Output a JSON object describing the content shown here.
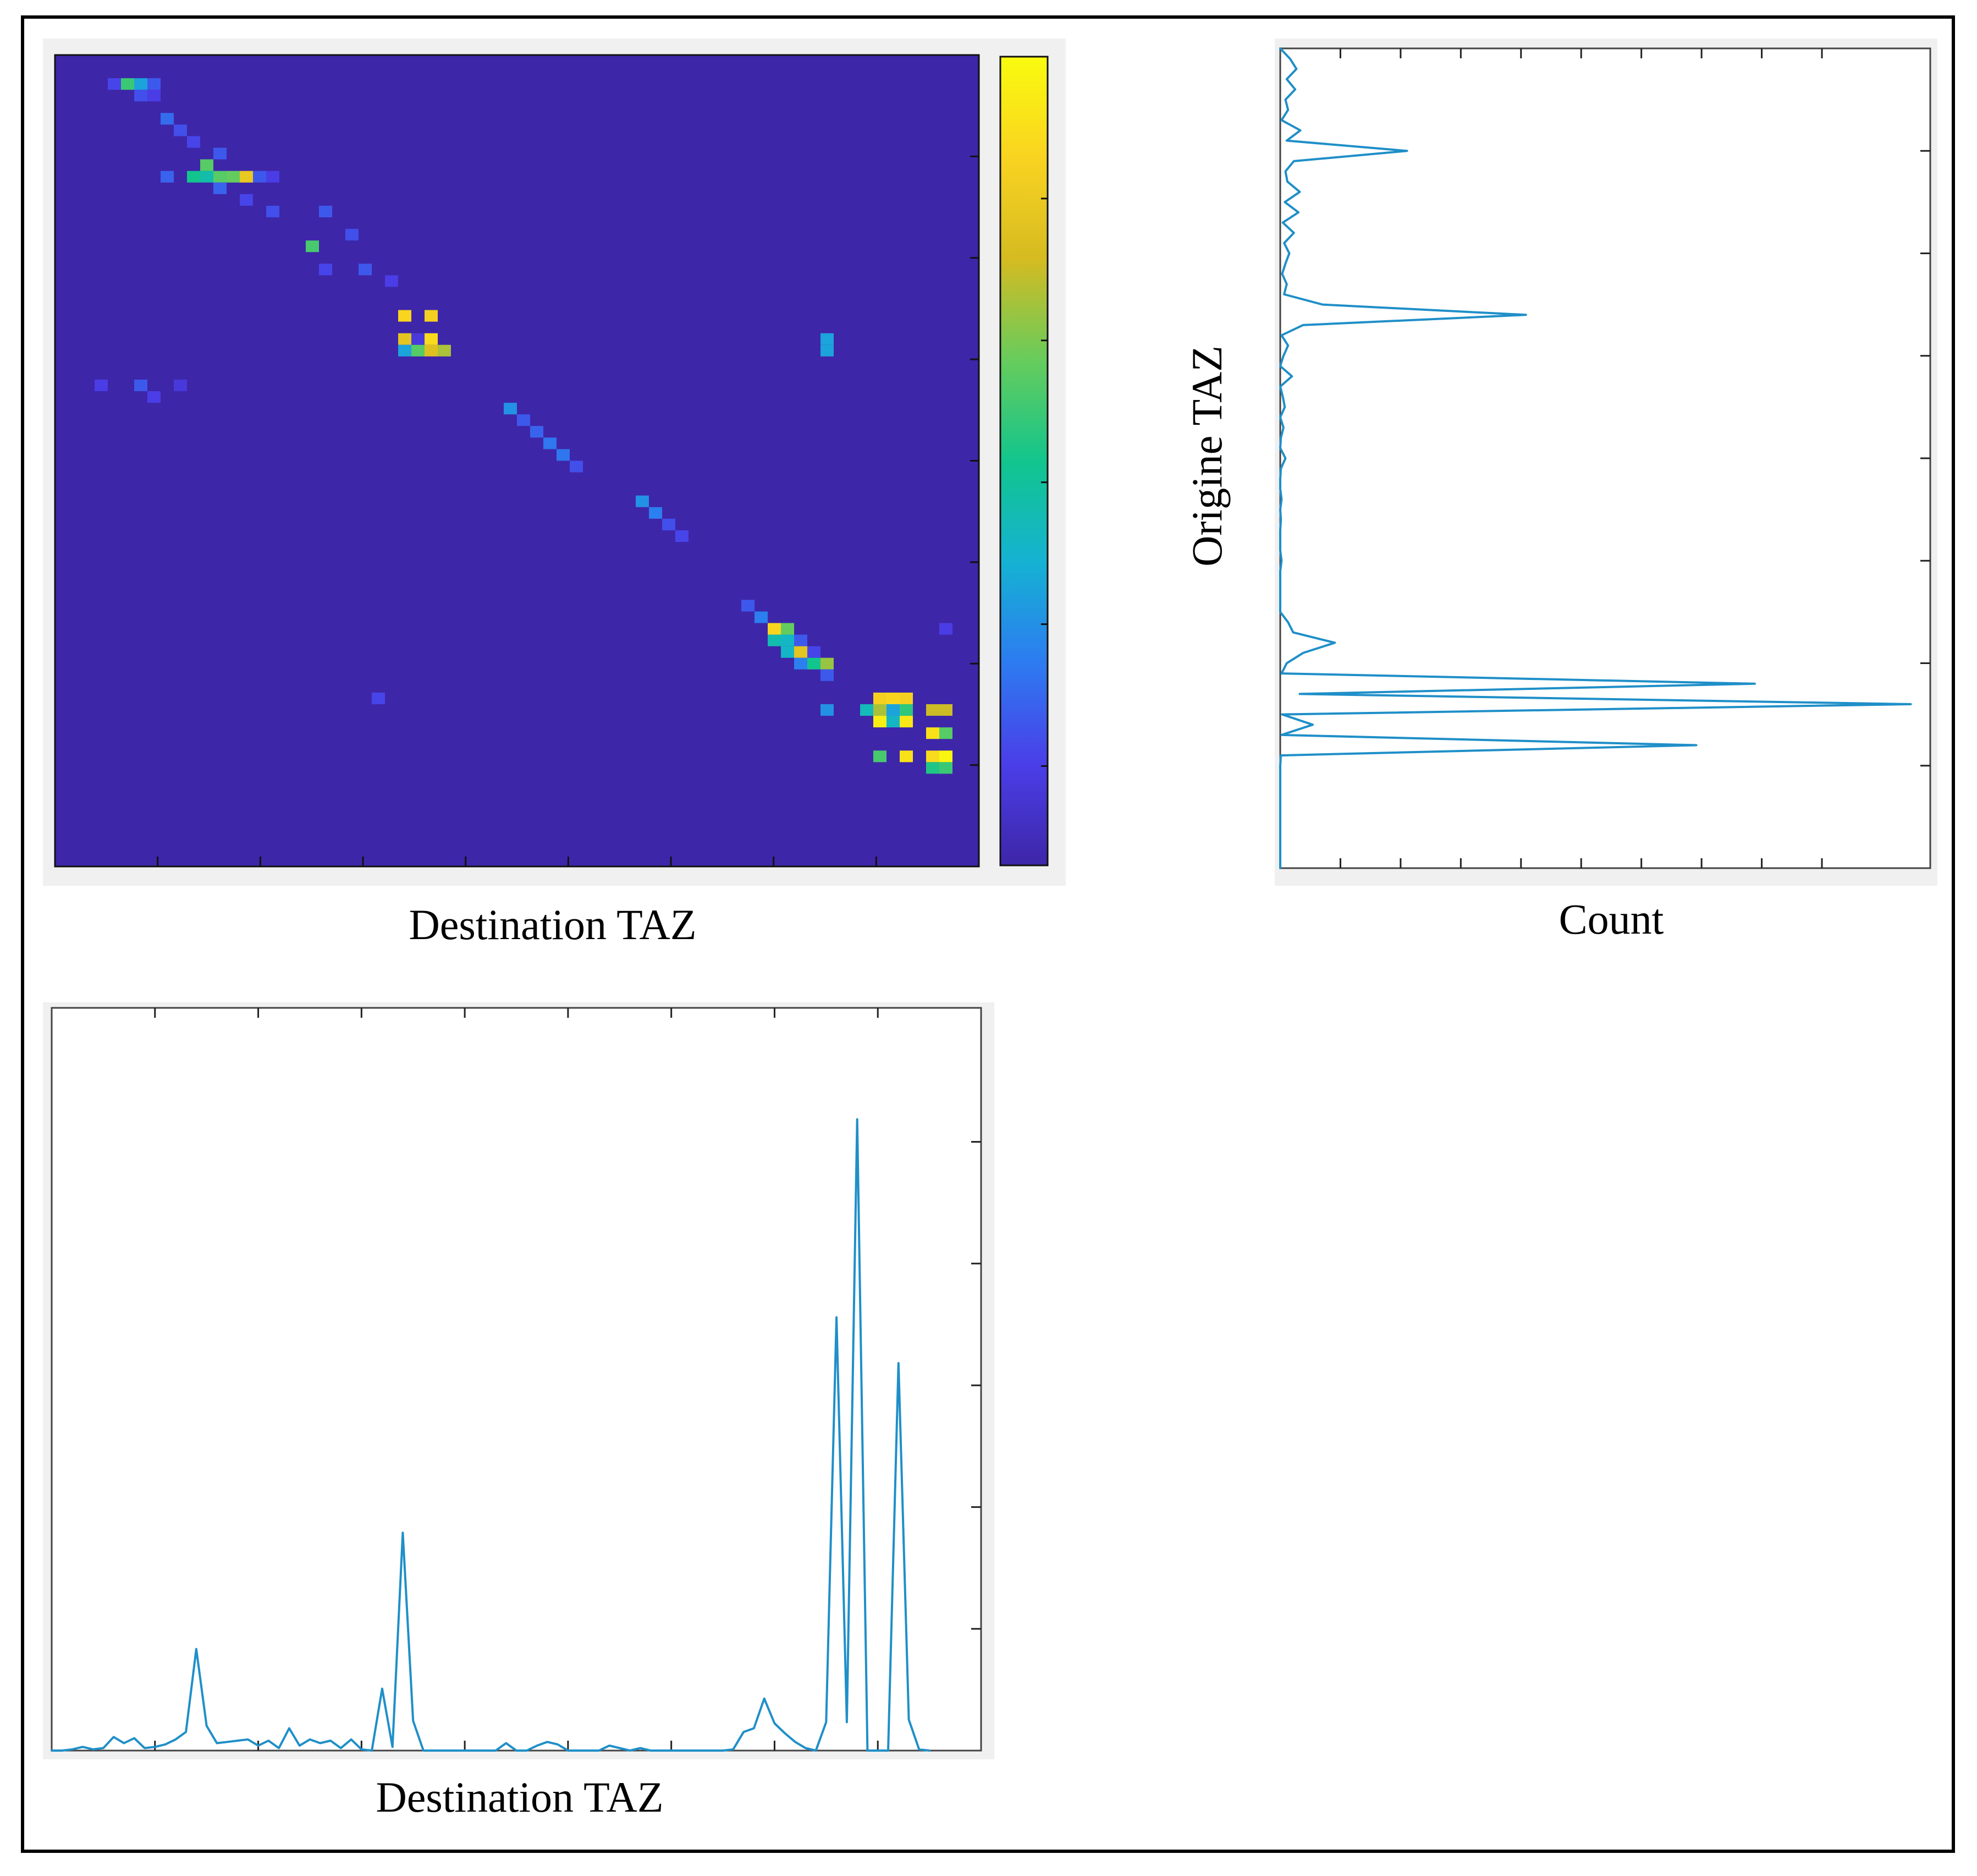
{
  "figure": {
    "border_color": "#000000",
    "line_color": "#1f8fc8",
    "panel_bg": "#f0f0f0"
  },
  "chart_data": [
    {
      "type": "heatmap",
      "title": "",
      "xlabel": "Destination TAZ",
      "ylabel": "",
      "grid": false,
      "colormap": "parula",
      "colormap_stops": [
        "#3e26a8",
        "#4a3ee8",
        "#2d7bf0",
        "#15b2d3",
        "#12c58d",
        "#67cc5c",
        "#d5bb21",
        "#f9d321",
        "#f9fb0e"
      ],
      "matrix_size": [
        70,
        70
      ],
      "background_value": 0,
      "cells": [
        [
          2,
          4,
          0.14
        ],
        [
          2,
          5,
          0.56
        ],
        [
          2,
          6,
          0.34
        ],
        [
          2,
          7,
          0.18
        ],
        [
          3,
          6,
          0.16
        ],
        [
          3,
          7,
          0.12
        ],
        [
          5,
          8,
          0.22
        ],
        [
          6,
          9,
          0.16
        ],
        [
          7,
          10,
          0.14
        ],
        [
          8,
          12,
          0.18
        ],
        [
          9,
          11,
          0.22
        ],
        [
          10,
          8,
          0.2
        ],
        [
          10,
          10,
          0.5
        ],
        [
          10,
          11,
          0.45
        ],
        [
          10,
          12,
          0.6
        ],
        [
          10,
          13,
          0.62
        ],
        [
          10,
          14,
          0.82
        ],
        [
          10,
          15,
          0.18
        ],
        [
          10,
          16,
          0.12
        ],
        [
          9,
          11,
          0.6
        ],
        [
          11,
          12,
          0.2
        ],
        [
          12,
          14,
          0.14
        ],
        [
          13,
          16,
          0.16
        ],
        [
          16,
          19,
          0.58
        ],
        [
          13,
          20,
          0.18
        ],
        [
          15,
          22,
          0.16
        ],
        [
          18,
          20,
          0.14
        ],
        [
          18,
          23,
          0.18
        ],
        [
          19,
          25,
          0.12
        ],
        [
          22,
          26,
          0.88
        ],
        [
          22,
          28,
          0.86
        ],
        [
          24,
          26,
          0.8
        ],
        [
          24,
          28,
          0.9
        ],
        [
          24,
          27,
          0.1
        ],
        [
          25,
          26,
          0.34
        ],
        [
          25,
          27,
          0.6
        ],
        [
          25,
          28,
          0.78
        ],
        [
          25,
          29,
          0.7
        ],
        [
          24,
          58,
          0.34
        ],
        [
          25,
          58,
          0.34
        ],
        [
          28,
          3,
          0.12
        ],
        [
          28,
          6,
          0.18
        ],
        [
          29,
          7,
          0.12
        ],
        [
          28,
          9,
          0.1
        ],
        [
          30,
          34,
          0.3
        ],
        [
          31,
          35,
          0.18
        ],
        [
          32,
          36,
          0.2
        ],
        [
          33,
          37,
          0.24
        ],
        [
          34,
          38,
          0.24
        ],
        [
          35,
          39,
          0.16
        ],
        [
          38,
          44,
          0.3
        ],
        [
          39,
          45,
          0.26
        ],
        [
          40,
          46,
          0.16
        ],
        [
          41,
          47,
          0.14
        ],
        [
          47,
          52,
          0.18
        ],
        [
          48,
          53,
          0.26
        ],
        [
          49,
          54,
          0.88
        ],
        [
          49,
          55,
          0.62
        ],
        [
          50,
          54,
          0.44
        ],
        [
          50,
          55,
          0.4
        ],
        [
          50,
          56,
          0.18
        ],
        [
          51,
          55,
          0.4
        ],
        [
          51,
          56,
          0.8
        ],
        [
          51,
          57,
          0.14
        ],
        [
          52,
          56,
          0.26
        ],
        [
          52,
          57,
          0.5
        ],
        [
          52,
          58,
          0.68
        ],
        [
          53,
          58,
          0.18
        ],
        [
          49,
          67,
          0.12
        ],
        [
          55,
          24,
          0.14
        ],
        [
          56,
          58,
          0.3
        ],
        [
          55,
          62,
          0.86
        ],
        [
          55,
          63,
          0.88
        ],
        [
          55,
          64,
          0.86
        ],
        [
          56,
          61,
          0.42
        ],
        [
          56,
          62,
          0.7
        ],
        [
          56,
          63,
          0.34
        ],
        [
          56,
          64,
          0.54
        ],
        [
          56,
          66,
          0.74
        ],
        [
          56,
          67,
          0.74
        ],
        [
          57,
          62,
          0.96
        ],
        [
          57,
          63,
          0.4
        ],
        [
          57,
          64,
          0.94
        ],
        [
          58,
          66,
          0.92
        ],
        [
          58,
          67,
          0.6
        ],
        [
          60,
          62,
          0.58
        ],
        [
          60,
          64,
          0.92
        ],
        [
          60,
          66,
          0.9
        ],
        [
          60,
          67,
          0.98
        ],
        [
          61,
          66,
          0.52
        ],
        [
          61,
          67,
          0.56
        ]
      ]
    },
    {
      "type": "line",
      "title": "",
      "xlabel": "Count",
      "ylabel": "Origine TAZ",
      "orientation": "horizontal",
      "grid": false,
      "xlim": [
        0,
        100
      ],
      "ylim": [
        0,
        80
      ],
      "y": [
        0,
        1,
        2,
        3,
        4,
        5,
        6,
        7,
        8,
        9,
        10,
        11,
        12,
        13,
        14,
        15,
        16,
        17,
        18,
        19,
        20,
        21,
        22,
        23,
        24,
        25,
        26,
        27,
        28,
        29,
        30,
        31,
        32,
        33,
        34,
        35,
        36,
        37,
        38,
        39,
        40,
        41,
        42,
        43,
        44,
        45,
        46,
        47,
        48,
        49,
        50,
        51,
        52,
        53,
        54,
        55,
        56,
        57,
        58,
        59,
        60,
        61,
        62,
        63,
        64,
        65,
        66,
        67,
        68,
        69,
        70,
        71,
        72,
        73,
        74,
        75,
        76,
        77,
        78,
        79,
        80
      ],
      "x": [
        0,
        1.5,
        2.5,
        1.0,
        2.3,
        0.8,
        1.2,
        0.2,
        3.1,
        1.0,
        19.5,
        2.1,
        0.8,
        1.1,
        3.0,
        0.7,
        2.8,
        0.4,
        2.1,
        0.6,
        1.4,
        0.8,
        0.3,
        1.0,
        0.6,
        6.5,
        37.8,
        3.5,
        0.2,
        1.2,
        0.5,
        0.0,
        1.8,
        0.0,
        0.4,
        0.7,
        0.0,
        0.5,
        0.1,
        0.0,
        0.8,
        0.1,
        0.0,
        0.0,
        0.2,
        0.0,
        0.1,
        0.0,
        0.0,
        0.0,
        0.2,
        0.0,
        0.0,
        0.0,
        0.0,
        0.0,
        1.2,
        2.0,
        8.4,
        3.5,
        1.0,
        0.2,
        73.0,
        3.0,
        97.0,
        0.3,
        5.0,
        0.2,
        64.0,
        0.1,
        0.0,
        0.0,
        0.0,
        0.0,
        0.0,
        0.0,
        0.0,
        0.0,
        0.0,
        0.0,
        0.0
      ]
    },
    {
      "type": "line",
      "title": "",
      "xlabel": "Destination TAZ",
      "ylabel": "",
      "grid": false,
      "xlim": [
        0,
        90
      ],
      "ylim": [
        0,
        60
      ],
      "x": [
        0,
        1,
        2,
        3,
        4,
        5,
        6,
        7,
        8,
        9,
        10,
        11,
        12,
        13,
        14,
        15,
        16,
        17,
        18,
        19,
        20,
        21,
        22,
        23,
        24,
        25,
        26,
        27,
        28,
        29,
        30,
        31,
        32,
        33,
        34,
        35,
        36,
        37,
        38,
        39,
        40,
        41,
        42,
        43,
        44,
        45,
        46,
        47,
        48,
        49,
        50,
        51,
        52,
        53,
        54,
        55,
        56,
        57,
        58,
        59,
        60,
        61,
        62,
        63,
        64,
        65,
        66,
        67,
        68,
        69,
        70,
        71,
        72,
        73,
        74,
        75,
        76,
        77,
        78,
        79,
        80,
        81,
        82,
        83,
        84,
        85
      ],
      "y": [
        0,
        0,
        0.1,
        0.3,
        0.1,
        0.2,
        1.1,
        0.6,
        1.0,
        0.2,
        0.3,
        0.5,
        0.9,
        1.5,
        8.2,
        2.0,
        0.6,
        0.7,
        0.8,
        0.9,
        0.4,
        0.8,
        0.2,
        1.8,
        0.4,
        0.9,
        0.6,
        0.8,
        0.2,
        0.9,
        0.1,
        0.0,
        5.0,
        0.3,
        17.6,
        2.4,
        0.0,
        0.0,
        0.0,
        0.0,
        0.0,
        0.0,
        0.0,
        0.0,
        0.6,
        0.0,
        0.0,
        0.4,
        0.7,
        0.5,
        0.0,
        0.0,
        0.0,
        0.0,
        0.4,
        0.2,
        0.0,
        0.2,
        0.0,
        0.0,
        0.0,
        0.0,
        0.0,
        0.0,
        0.0,
        0.0,
        0.1,
        1.5,
        1.8,
        4.2,
        2.2,
        1.4,
        0.7,
        0.2,
        0.0,
        2.3,
        35.0,
        2.3,
        51.0,
        0.0,
        0.0,
        0.0,
        31.3,
        2.5,
        0.1,
        0.0
      ]
    }
  ]
}
